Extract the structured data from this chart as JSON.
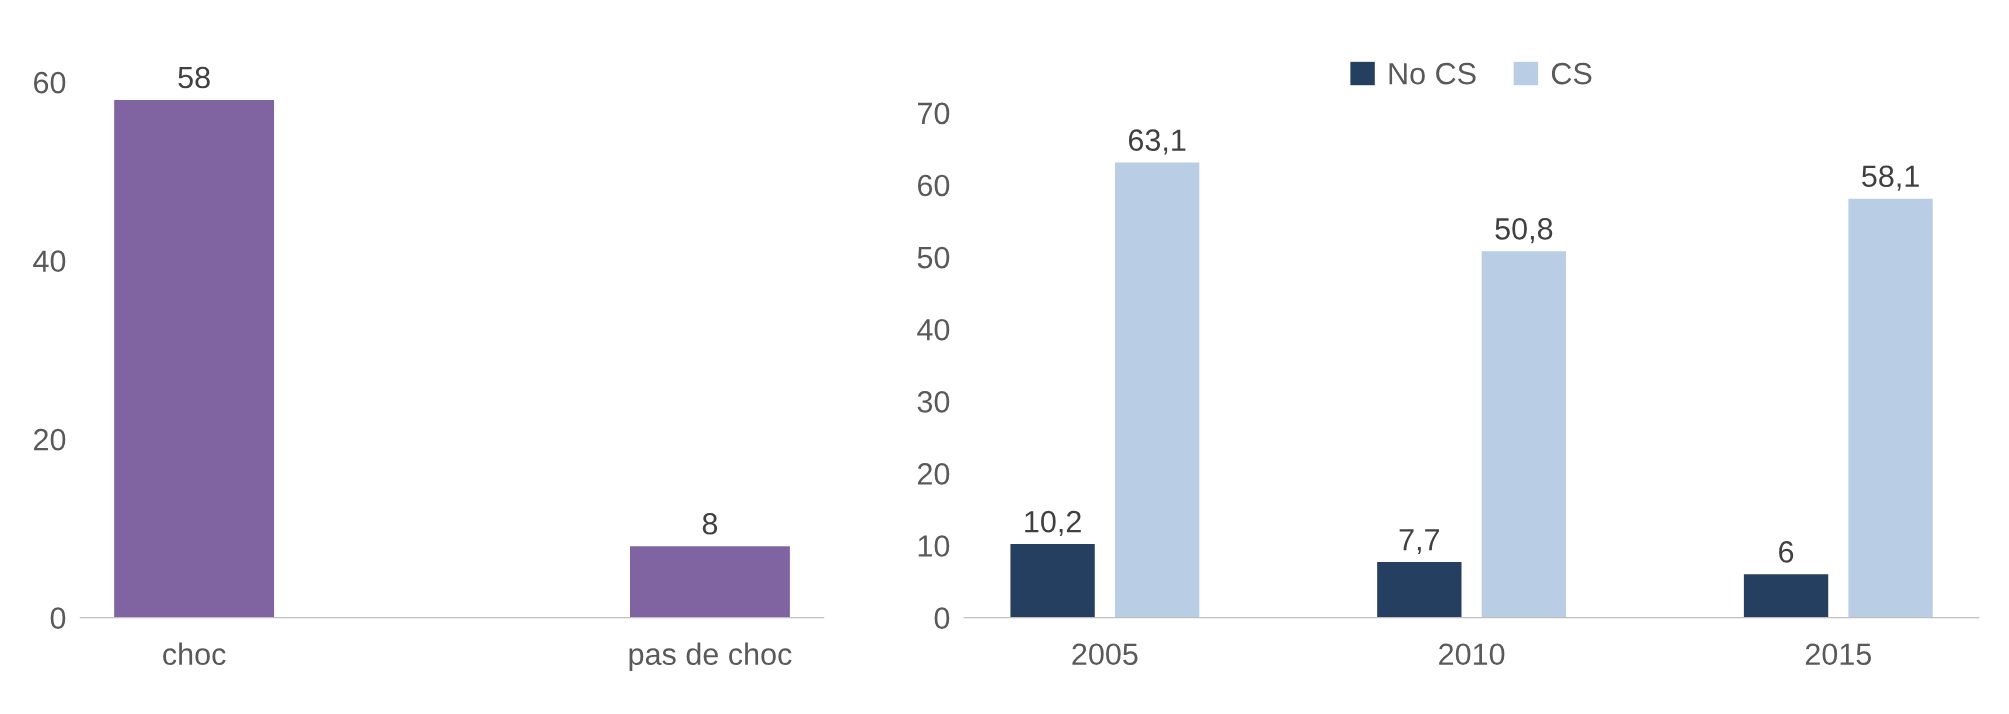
{
  "chart_data": [
    {
      "type": "bar",
      "categories": [
        "choc",
        "pas de choc"
      ],
      "values": [
        58,
        8
      ],
      "color": "#8064a2",
      "ylim": [
        0,
        60
      ],
      "yticks": [
        0,
        20,
        40,
        60
      ],
      "data_labels": true,
      "grid": false,
      "legend": false
    },
    {
      "type": "bar",
      "categories": [
        "2005",
        "2010",
        "2015"
      ],
      "series": [
        {
          "name": "No CS",
          "color": "#243f60",
          "values": [
            10.2,
            7.7,
            6
          ],
          "value_labels": [
            "10,2",
            "7,7",
            "6"
          ]
        },
        {
          "name": "CS",
          "color": "#b9cde5",
          "values": [
            63.1,
            50.8,
            58.1
          ],
          "value_labels": [
            "63,1",
            "50,8",
            "58,1"
          ]
        }
      ],
      "ylim": [
        0,
        70
      ],
      "yticks": [
        0,
        10,
        20,
        30,
        40,
        50,
        60,
        70
      ],
      "grid": false,
      "legend": "top"
    }
  ]
}
